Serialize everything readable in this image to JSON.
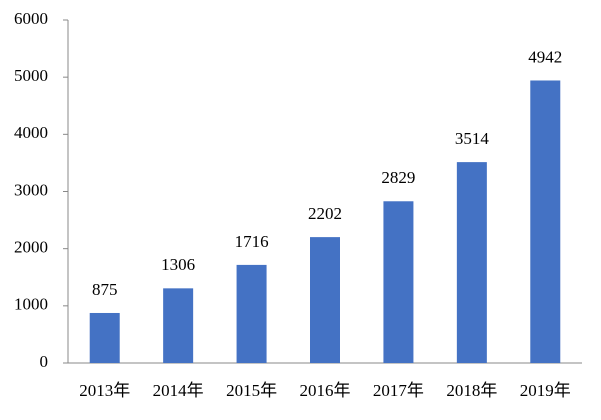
{
  "chart_data": {
    "type": "bar",
    "categories": [
      "2013年",
      "2014年",
      "2015年",
      "2016年",
      "2017年",
      "2018年",
      "2019年"
    ],
    "values": [
      875,
      1306,
      1716,
      2202,
      2829,
      3514,
      4942
    ],
    "color": "#4472c4",
    "ylim": [
      0,
      6000
    ],
    "yticks": [
      0,
      1000,
      2000,
      3000,
      4000,
      5000,
      6000
    ],
    "grid": false
  }
}
